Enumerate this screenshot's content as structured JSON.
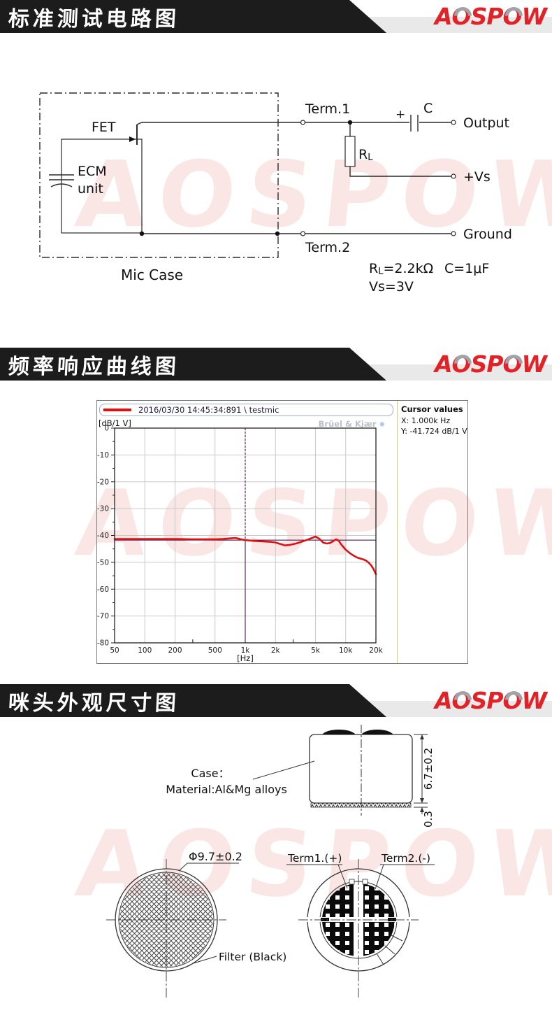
{
  "headers": {
    "logo_parts": {
      "a": "A",
      "o1": "O",
      "sp": "SP",
      "o2": "O",
      "w": "W"
    },
    "sections": [
      "标准测试电路图",
      "频率响应曲线图",
      "咪头外观尺寸图"
    ]
  },
  "watermark_text": "AOSPOW",
  "circuit": {
    "fet_label": "FET",
    "ecm_line1": "ECM",
    "ecm_line2": "unit",
    "mic_case_label": "Mic Case",
    "term1_label": "Term.1",
    "term2_label": "Term.2",
    "output_label": "Output",
    "vs_label": "+Vs",
    "ground_label": "Ground",
    "cap_plus": "+",
    "cap_label": "C",
    "rl_base": "R",
    "rl_sub": "L",
    "value_rl_rest": "=2.2kΩ",
    "value_c": "C=1μF",
    "value_vs": "Vs=3V"
  },
  "chart": {
    "legend": "2016/03/30 14:45:34:891 \\ testmic",
    "brand": "Brüel & Kjær",
    "y_unit": "[dB/1 V]",
    "x_unit": "[Hz]",
    "cursor_title": "Cursor values",
    "cursor_x": "X: 1.000k Hz",
    "cursor_y": "Y: -41.724 dB/1 V"
  },
  "chart_data": {
    "type": "line",
    "title": "Frequency response",
    "xlabel": "[Hz]",
    "ylabel": "[dB/1 V]",
    "x_scale": "log",
    "xlim": [
      50,
      20000
    ],
    "ylim": [
      -80,
      0
    ],
    "grid": true,
    "legend_position": "top",
    "x_ticks": [
      "50",
      "100",
      "200",
      "500",
      "1k",
      "2k",
      "5k",
      "10k",
      "20k"
    ],
    "x_tick_values": [
      50,
      100,
      200,
      500,
      1000,
      2000,
      5000,
      10000,
      20000
    ],
    "x_minor_ticks": [
      300,
      3000
    ],
    "y_ticks": [
      0,
      -10,
      -20,
      -30,
      -40,
      -50,
      -60,
      -70,
      -80
    ],
    "cursor": {
      "x_hz": 1000,
      "y_db": -41.724
    },
    "series": [
      {
        "name": "2016/03/30 14:45:34:891 \\ testmic",
        "color": "#dd1111",
        "points": [
          [
            50,
            -41.3
          ],
          [
            70,
            -41.3
          ],
          [
            100,
            -41.3
          ],
          [
            150,
            -41.3
          ],
          [
            200,
            -41.3
          ],
          [
            300,
            -41.4
          ],
          [
            400,
            -41.4
          ],
          [
            500,
            -41.4
          ],
          [
            600,
            -41.3
          ],
          [
            700,
            -41.1
          ],
          [
            800,
            -40.9
          ],
          [
            900,
            -41.4
          ],
          [
            1000,
            -41.724
          ],
          [
            1200,
            -42.0
          ],
          [
            1500,
            -42.2
          ],
          [
            1800,
            -42.4
          ],
          [
            2000,
            -42.6
          ],
          [
            2200,
            -43.1
          ],
          [
            2500,
            -43.7
          ],
          [
            2800,
            -43.5
          ],
          [
            3200,
            -43.0
          ],
          [
            3600,
            -42.4
          ],
          [
            4200,
            -41.5
          ],
          [
            4700,
            -40.8
          ],
          [
            5000,
            -40.4
          ],
          [
            5500,
            -41.3
          ],
          [
            6000,
            -42.7
          ],
          [
            6500,
            -43.0
          ],
          [
            7000,
            -42.8
          ],
          [
            7500,
            -42.1
          ],
          [
            8000,
            -41.4
          ],
          [
            8500,
            -41.9
          ],
          [
            9000,
            -43.3
          ],
          [
            9500,
            -44.3
          ],
          [
            10000,
            -45.3
          ],
          [
            11000,
            -46.6
          ],
          [
            12000,
            -47.5
          ],
          [
            13000,
            -48.2
          ],
          [
            14000,
            -48.6
          ],
          [
            15000,
            -48.9
          ],
          [
            16000,
            -49.4
          ],
          [
            17000,
            -50.2
          ],
          [
            18000,
            -51.2
          ],
          [
            19000,
            -52.6
          ],
          [
            20000,
            -54.4
          ]
        ]
      }
    ]
  },
  "dimensions": {
    "case_label": "Case：",
    "material": "Material:Al&Mg alloys",
    "height": "6.7±0.2",
    "strip": "0.3",
    "diameter": "Φ9.7±0.2",
    "filter": "Filter (Black)",
    "term1": "Term1.(+)",
    "term2": "Term2.(-)"
  }
}
